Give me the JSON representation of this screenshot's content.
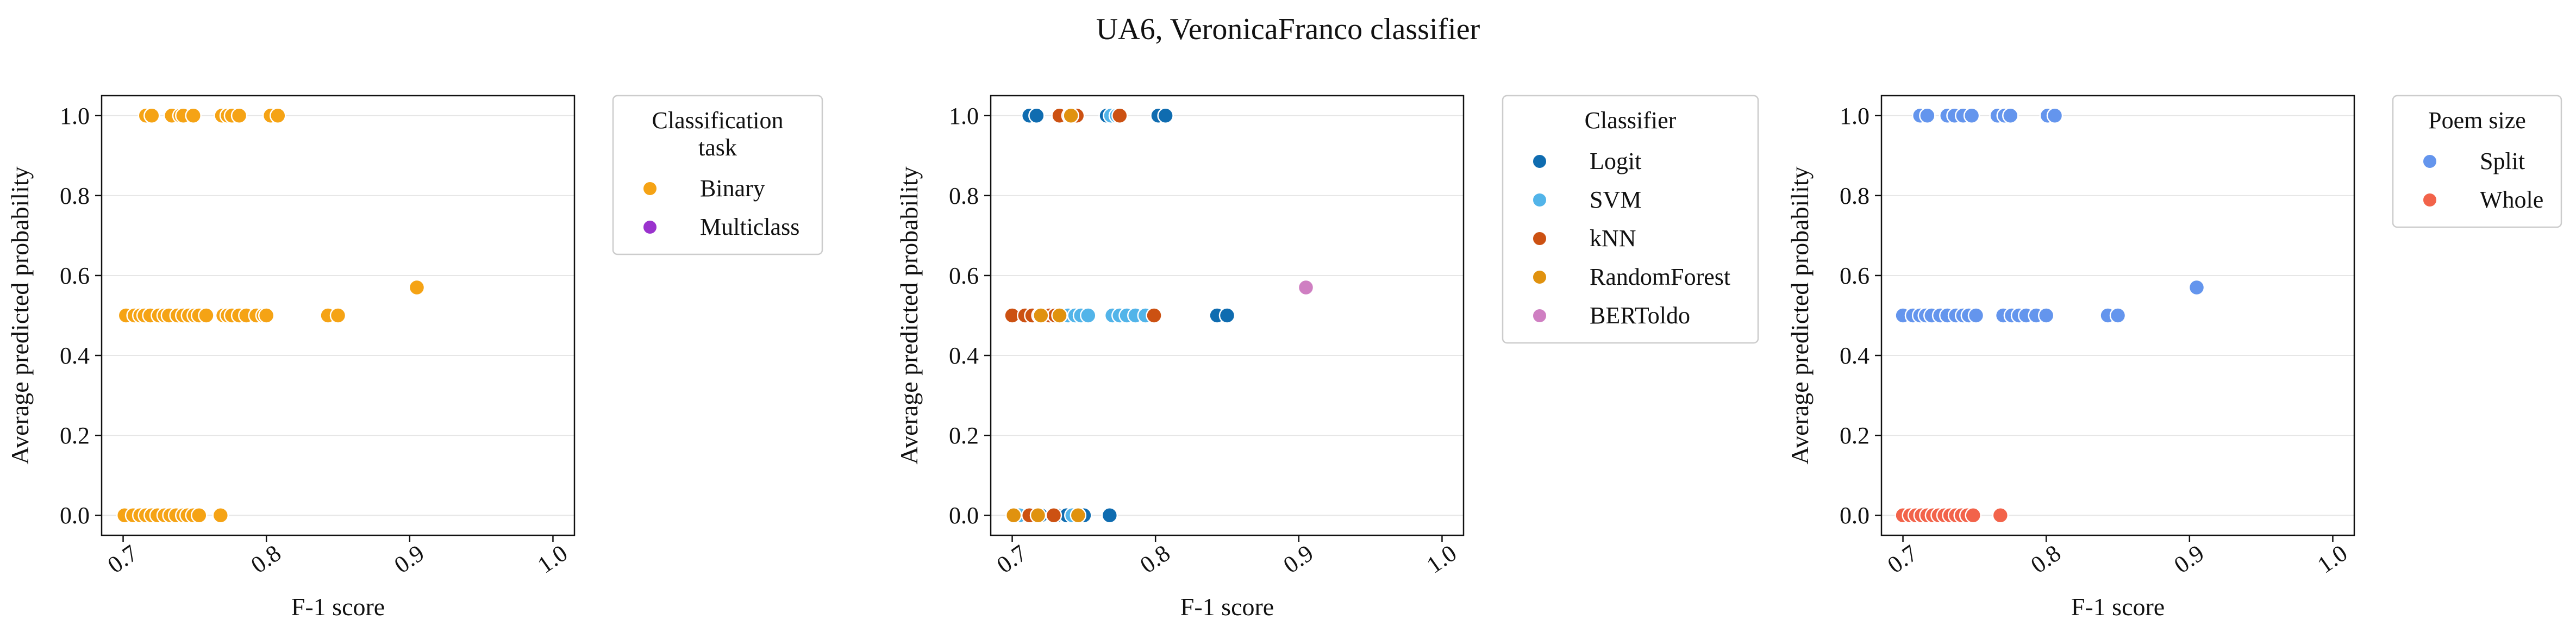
{
  "figure_title": "UA6, VeronicaFranco classifier",
  "chart_data": [
    {
      "type": "scatter",
      "title": "",
      "xlabel": "F-1 score",
      "ylabel": "Average predicted probability",
      "xlim": [
        0.685,
        1.015
      ],
      "ylim": [
        -0.05,
        1.05
      ],
      "xticks": [
        "0.7",
        "0.8",
        "0.9",
        "1.0"
      ],
      "yticks": [
        "0.0",
        "0.2",
        "0.4",
        "0.6",
        "0.8",
        "1.0"
      ],
      "grid": "horizontal",
      "legend": {
        "title": "Classification\ntask",
        "placement": "outside-upper-right",
        "entries": [
          {
            "name": "Binary",
            "color": "#f5a315"
          },
          {
            "name": "Multiclass",
            "color": "#9a32cd"
          }
        ]
      },
      "series": [
        {
          "name": "Binary",
          "color": "#f5a315",
          "points": [
            [
              0.716,
              1
            ],
            [
              0.72,
              1
            ],
            [
              0.734,
              1
            ],
            [
              0.74,
              1
            ],
            [
              0.742,
              1
            ],
            [
              0.749,
              1
            ],
            [
              0.769,
              1
            ],
            [
              0.773,
              1
            ],
            [
              0.776,
              1
            ],
            [
              0.781,
              1
            ],
            [
              0.803,
              1
            ],
            [
              0.808,
              1
            ],
            [
              0.702,
              0.5
            ],
            [
              0.708,
              0.5
            ],
            [
              0.712,
              0.5
            ],
            [
              0.715,
              0.5
            ],
            [
              0.719,
              0.5
            ],
            [
              0.725,
              0.5
            ],
            [
              0.729,
              0.5
            ],
            [
              0.732,
              0.5
            ],
            [
              0.738,
              0.5
            ],
            [
              0.742,
              0.5
            ],
            [
              0.746,
              0.5
            ],
            [
              0.75,
              0.5
            ],
            [
              0.753,
              0.5
            ],
            [
              0.758,
              0.5
            ],
            [
              0.77,
              0.5
            ],
            [
              0.773,
              0.5
            ],
            [
              0.776,
              0.5
            ],
            [
              0.781,
              0.5
            ],
            [
              0.786,
              0.5
            ],
            [
              0.793,
              0.5
            ],
            [
              0.798,
              0.5
            ],
            [
              0.8,
              0.5
            ],
            [
              0.843,
              0.5
            ],
            [
              0.85,
              0.5
            ],
            [
              0.905,
              0.57
            ],
            [
              0.701,
              0
            ],
            [
              0.707,
              0
            ],
            [
              0.712,
              0
            ],
            [
              0.716,
              0
            ],
            [
              0.72,
              0
            ],
            [
              0.724,
              0
            ],
            [
              0.729,
              0
            ],
            [
              0.733,
              0
            ],
            [
              0.737,
              0
            ],
            [
              0.742,
              0
            ],
            [
              0.745,
              0
            ],
            [
              0.749,
              0
            ],
            [
              0.753,
              0
            ],
            [
              0.768,
              0
            ]
          ]
        },
        {
          "name": "Multiclass",
          "color": "#9a32cd",
          "points": []
        }
      ]
    },
    {
      "type": "scatter",
      "title": "",
      "xlabel": "F-1 score",
      "ylabel": "Average predicted probability",
      "xlim": [
        0.685,
        1.015
      ],
      "ylim": [
        -0.05,
        1.05
      ],
      "xticks": [
        "0.7",
        "0.8",
        "0.9",
        "1.0"
      ],
      "yticks": [
        "0.0",
        "0.2",
        "0.4",
        "0.6",
        "0.8",
        "1.0"
      ],
      "grid": "horizontal",
      "legend": {
        "title": "Classifier",
        "placement": "outside-upper-right",
        "entries": [
          {
            "name": "Logit",
            "color": "#0f6cb0"
          },
          {
            "name": "SVM",
            "color": "#52b4e9"
          },
          {
            "name": "kNN",
            "color": "#cc5112"
          },
          {
            "name": "RandomForest",
            "color": "#e0920f"
          },
          {
            "name": "BERToldo",
            "color": "#cf7fc2"
          }
        ]
      },
      "series": [
        {
          "name": "Logit",
          "color": "#0f6cb0",
          "points": [
            [
              0.712,
              1
            ],
            [
              0.717,
              1
            ],
            [
              0.766,
              1
            ],
            [
              0.771,
              1
            ],
            [
              0.802,
              1
            ],
            [
              0.807,
              1
            ],
            [
              0.843,
              0.5
            ],
            [
              0.85,
              0.5
            ],
            [
              0.72,
              0
            ],
            [
              0.731,
              0
            ],
            [
              0.738,
              0
            ],
            [
              0.75,
              0
            ],
            [
              0.768,
              0
            ]
          ]
        },
        {
          "name": "SVM",
          "color": "#52b4e9",
          "points": [
            [
              0.769,
              1
            ],
            [
              0.773,
              1
            ],
            [
              0.739,
              0.5
            ],
            [
              0.744,
              0.5
            ],
            [
              0.748,
              0.5
            ],
            [
              0.753,
              0.5
            ],
            [
              0.77,
              0.5
            ],
            [
              0.775,
              0.5
            ],
            [
              0.78,
              0.5
            ],
            [
              0.786,
              0.5
            ],
            [
              0.793,
              0.5
            ],
            [
              0.705,
              0
            ],
            [
              0.742,
              0
            ]
          ]
        },
        {
          "name": "kNN",
          "color": "#cc5112",
          "points": [
            [
              0.733,
              1
            ],
            [
              0.74,
              1
            ],
            [
              0.745,
              1
            ],
            [
              0.775,
              1
            ],
            [
              0.7,
              0.5
            ],
            [
              0.709,
              0.5
            ],
            [
              0.714,
              0.5
            ],
            [
              0.719,
              0.5
            ],
            [
              0.726,
              0.5
            ],
            [
              0.73,
              0.5
            ],
            [
              0.799,
              0.5
            ],
            [
              0.712,
              0
            ],
            [
              0.729,
              0
            ]
          ]
        },
        {
          "name": "RandomForest",
          "color": "#e0920f",
          "points": [
            [
              0.741,
              1
            ],
            [
              0.72,
              0.5
            ],
            [
              0.733,
              0.5
            ],
            [
              0.701,
              0
            ],
            [
              0.718,
              0
            ],
            [
              0.746,
              0
            ]
          ]
        },
        {
          "name": "BERToldo",
          "color": "#cf7fc2",
          "points": [
            [
              0.905,
              0.57
            ]
          ]
        }
      ]
    },
    {
      "type": "scatter",
      "title": "",
      "xlabel": "F-1 score",
      "ylabel": "Average predicted probability",
      "xlim": [
        0.685,
        1.015
      ],
      "ylim": [
        -0.05,
        1.05
      ],
      "xticks": [
        "0.7",
        "0.8",
        "0.9",
        "1.0"
      ],
      "yticks": [
        "0.0",
        "0.2",
        "0.4",
        "0.6",
        "0.8",
        "1.0"
      ],
      "grid": "horizontal",
      "legend": {
        "title": "Poem size",
        "placement": "outside-upper-right",
        "entries": [
          {
            "name": "Split",
            "color": "#6495ed"
          },
          {
            "name": "Whole",
            "color": "#f2634a"
          }
        ]
      },
      "series": [
        {
          "name": "Split",
          "color": "#6495ed",
          "points": [
            [
              0.712,
              1
            ],
            [
              0.717,
              1
            ],
            [
              0.731,
              1
            ],
            [
              0.736,
              1
            ],
            [
              0.742,
              1
            ],
            [
              0.748,
              1
            ],
            [
              0.766,
              1
            ],
            [
              0.771,
              1
            ],
            [
              0.775,
              1
            ],
            [
              0.801,
              1
            ],
            [
              0.806,
              1
            ],
            [
              0.7,
              0.5
            ],
            [
              0.707,
              0.5
            ],
            [
              0.712,
              0.5
            ],
            [
              0.716,
              0.5
            ],
            [
              0.72,
              0.5
            ],
            [
              0.726,
              0.5
            ],
            [
              0.731,
              0.5
            ],
            [
              0.737,
              0.5
            ],
            [
              0.742,
              0.5
            ],
            [
              0.746,
              0.5
            ],
            [
              0.751,
              0.5
            ],
            [
              0.77,
              0.5
            ],
            [
              0.776,
              0.5
            ],
            [
              0.781,
              0.5
            ],
            [
              0.786,
              0.5
            ],
            [
              0.793,
              0.5
            ],
            [
              0.8,
              0.5
            ],
            [
              0.843,
              0.5
            ],
            [
              0.85,
              0.5
            ],
            [
              0.905,
              0.57
            ]
          ]
        },
        {
          "name": "Whole",
          "color": "#f2634a",
          "points": [
            [
              0.7,
              0
            ],
            [
              0.705,
              0
            ],
            [
              0.709,
              0
            ],
            [
              0.713,
              0
            ],
            [
              0.717,
              0
            ],
            [
              0.721,
              0
            ],
            [
              0.725,
              0
            ],
            [
              0.729,
              0
            ],
            [
              0.733,
              0
            ],
            [
              0.737,
              0
            ],
            [
              0.741,
              0
            ],
            [
              0.745,
              0
            ],
            [
              0.749,
              0
            ],
            [
              0.768,
              0
            ]
          ]
        }
      ]
    }
  ]
}
